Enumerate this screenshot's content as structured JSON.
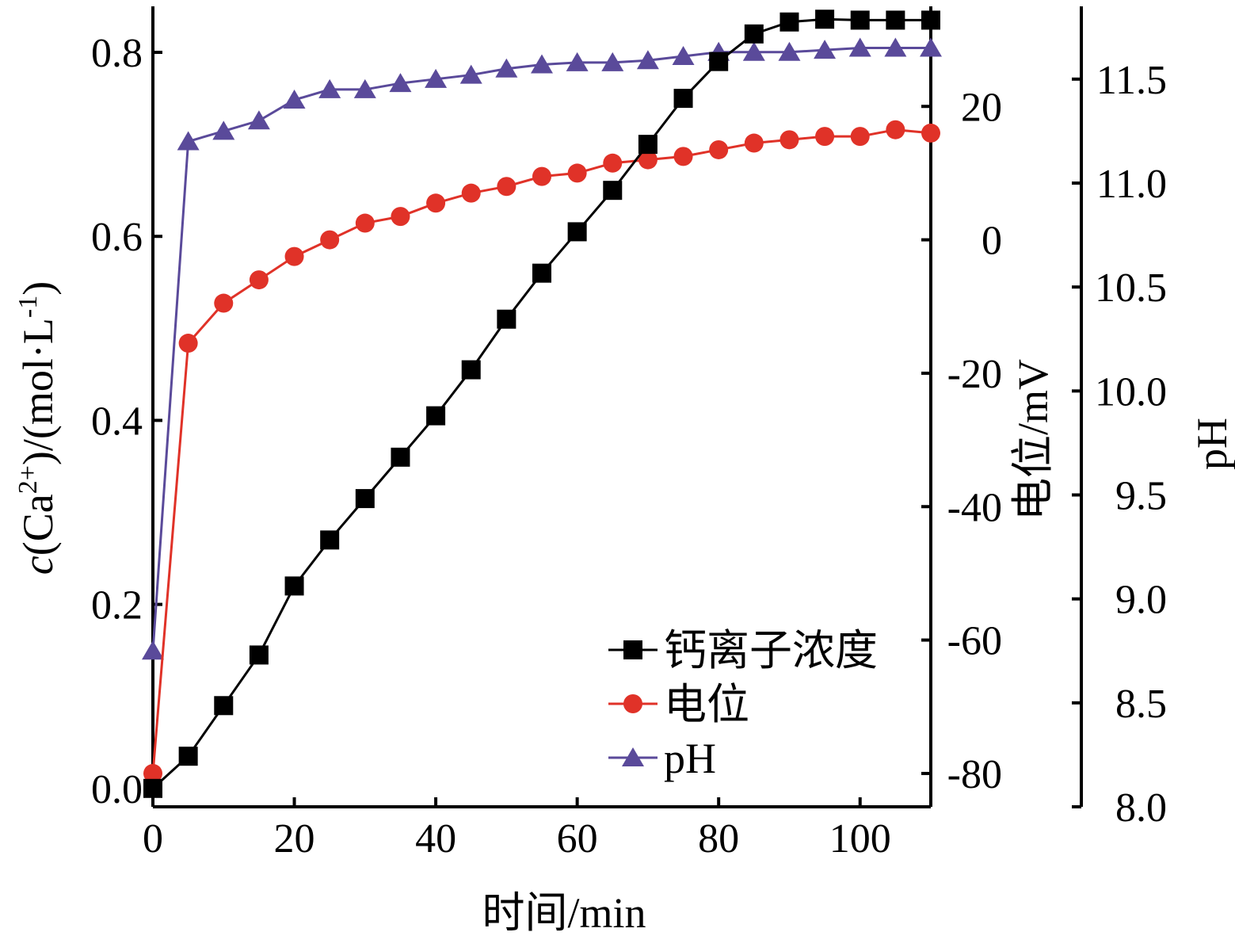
{
  "chart_data": {
    "type": "line",
    "x": [
      0,
      5,
      10,
      15,
      20,
      25,
      30,
      35,
      40,
      45,
      50,
      55,
      60,
      65,
      70,
      75,
      80,
      85,
      90,
      95,
      100,
      105,
      110
    ],
    "xlabel": "时间/min",
    "xlim": [
      0,
      110
    ],
    "xticks": [
      0,
      20,
      40,
      60,
      80,
      100
    ],
    "axes": {
      "left": {
        "label_prefix": "c",
        "label_rest": "(Ca",
        "label_sup": "2+",
        "label_mid": ")/(mol·L",
        "label_sup2": "-1",
        "label_end": ")",
        "ylim": [
          -0.02,
          0.85
        ],
        "ticks": [
          "0.0",
          "0.2",
          "0.4",
          "0.6",
          "0.8"
        ]
      },
      "right1": {
        "label": "电位/mV",
        "ylim": [
          -85,
          35
        ],
        "ticks": [
          "20",
          "0",
          "-20",
          "-40",
          "-60",
          "-80"
        ]
      },
      "right2": {
        "label": "pH",
        "ylim": [
          8.0,
          11.85
        ],
        "ticks": [
          "11.5",
          "11.0",
          "10.5",
          "10.0",
          "9.5",
          "9.0",
          "8.5",
          "8.0"
        ]
      }
    },
    "series": [
      {
        "name": "钙离子浓度",
        "axis": "left",
        "color": "#000000",
        "marker": "square",
        "values": [
          0.0,
          0.035,
          0.09,
          0.145,
          0.22,
          0.27,
          0.315,
          0.36,
          0.405,
          0.455,
          0.51,
          0.56,
          0.605,
          0.65,
          0.7,
          0.75,
          0.79,
          0.82,
          0.833,
          0.836,
          0.835,
          0.835,
          0.835
        ]
      },
      {
        "name": "电位",
        "axis": "right1",
        "color": "#e03228",
        "marker": "circle",
        "values": [
          -80.0,
          -15.5,
          -9.5,
          -6.0,
          -2.5,
          0.0,
          2.5,
          3.5,
          5.5,
          7.0,
          8.0,
          9.5,
          10.0,
          11.5,
          12.0,
          12.5,
          13.5,
          14.5,
          15.0,
          15.5,
          15.5,
          16.5,
          16.0
        ]
      },
      {
        "name": "pH",
        "axis": "right2",
        "color": "#5a4a9a",
        "marker": "triangle",
        "values": [
          8.75,
          11.2,
          11.25,
          11.3,
          11.4,
          11.45,
          11.45,
          11.48,
          11.5,
          11.52,
          11.55,
          11.57,
          11.58,
          11.58,
          11.59,
          11.61,
          11.63,
          11.63,
          11.63,
          11.64,
          11.65,
          11.65,
          11.65
        ]
      }
    ],
    "legend": {
      "placement": "bottom-right",
      "entries": [
        "钙离子浓度",
        "电位",
        "pH"
      ]
    }
  }
}
